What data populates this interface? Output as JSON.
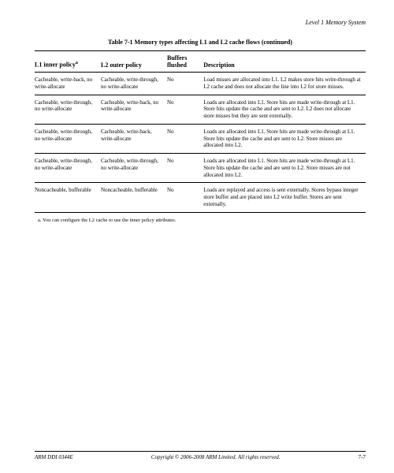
{
  "running_head": "Level 1 Memory System",
  "table": {
    "caption": "Table 7-1 Memory types affecting L1 and L2 cache flows (continued)",
    "columns": {
      "c1": "L1 inner policy",
      "c1_sup": "a",
      "c2": "L2 outer policy",
      "c3": "Buffers flushed",
      "c4": "Description"
    },
    "rows": [
      {
        "c1": "Cacheable, write-back, no write-allocate",
        "c2": "Cacheable, write-through, no write-allocate",
        "c3": "No",
        "c4": "Load misses are allocated into L1. L2 makes store hits write-through at L2 cache and does not allocate the line into L2 for store misses."
      },
      {
        "c1": "Cacheable, write-through, no write-allocate",
        "c2": "Cacheable, write-back, no write-allocate",
        "c3": "No",
        "c4": "Loads are allocated into L1. Store hits are made write-through at L1. Store hits update the cache and are sent to L2. L2 does not allocate store misses but they are sent externally."
      },
      {
        "c1": "Cacheable, write-through, no write-allocate",
        "c2": "Cacheable, write-back, write-allocate",
        "c3": "No",
        "c4": "Loads are allocated into L1. Store hits are made write-through at L1. Store hits update the cache and are sent to L2. Store misses are allocated into L2."
      },
      {
        "c1": "Cacheable, write-through, no write-allocate",
        "c2": "Cacheable, write-through, no write-allocate",
        "c3": "No",
        "c4": "Loads are allocated into L1. Store hits are made write-through at L1. Store hits update the cache and are sent to L2. Store misses are not allocated into L2."
      },
      {
        "c1": "Noncacheable, bufferable",
        "c2": "Noncacheable, bufferable",
        "c3": "No",
        "c4": "Loads are replayed and access is sent externally. Stores bypass integer store buffer and are placed into L2 write buffer. Stores are sent externally."
      }
    ]
  },
  "footnote": "a.  You can configure the L2 cache to use the inner policy attributes.",
  "footer": {
    "left": "ARM DDI 0344E",
    "center": "Copyright © 2006-2008 ARM Limited. All rights reserved.",
    "right": "7-7"
  }
}
